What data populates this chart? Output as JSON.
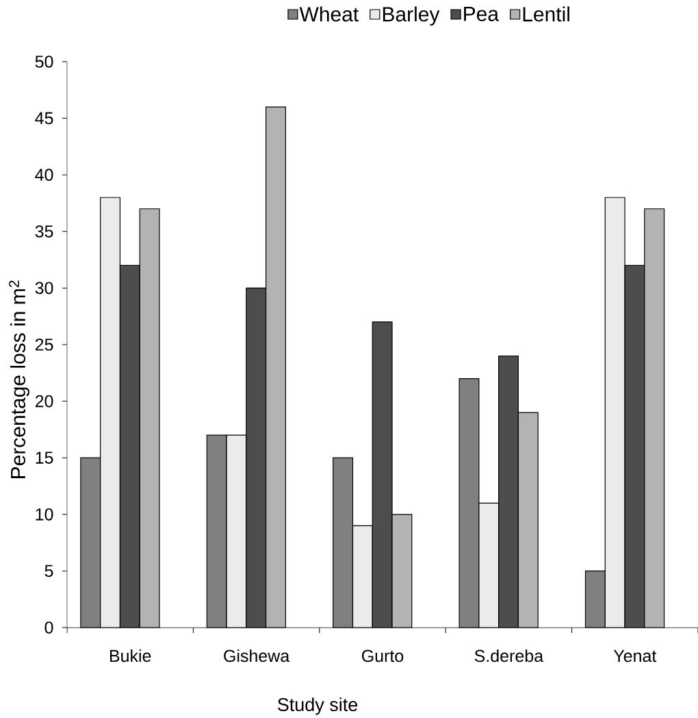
{
  "chart_data": {
    "type": "bar",
    "xlabel": "Study site",
    "ylabel": "Percentage loss in m$^{2}$",
    "categories": [
      "Bukie",
      "Gishewa",
      "Gurto",
      "S.dereba",
      "Yenat"
    ],
    "series": [
      {
        "name": "Wheat",
        "color": "#808080",
        "values": [
          15,
          17,
          15,
          22,
          5
        ]
      },
      {
        "name": "Barley",
        "color": "#ebebeb",
        "values": [
          38,
          17,
          9,
          11,
          38
        ]
      },
      {
        "name": "Pea",
        "color": "#4d4d4d",
        "values": [
          32,
          30,
          27,
          24,
          32
        ]
      },
      {
        "name": "Lentil",
        "color": "#b3b3b3",
        "values": [
          37,
          46,
          10,
          19,
          37
        ]
      }
    ],
    "ylim": [
      0,
      50
    ],
    "yticks": [
      0,
      5,
      10,
      15,
      20,
      25,
      30,
      35,
      40,
      45,
      50
    ],
    "legend": "top"
  }
}
